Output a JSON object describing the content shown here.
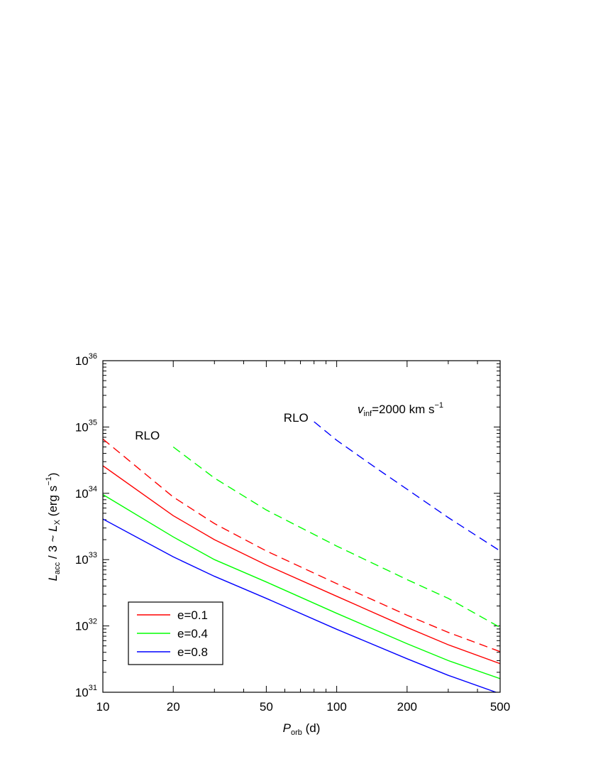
{
  "chart_data": {
    "type": "line",
    "xlabel": {
      "main": "P",
      "sub": "orb",
      "unit": " (d)"
    },
    "ylabel": {
      "L1": "L",
      "L1sub": "acc",
      "mid": " / 3 ~ ",
      "L2": "L",
      "L2sub": "X",
      "unit": " (erg s",
      "sup": "−1",
      "close": ")"
    },
    "xscale": "log",
    "yscale": "log",
    "xlim": [
      10,
      500
    ],
    "ylim": [
      1e+31,
      1e+36
    ],
    "xticks": [
      {
        "value": 10,
        "label": "10"
      },
      {
        "value": 20,
        "label": "20"
      },
      {
        "value": 50,
        "label": "50"
      },
      {
        "value": 100,
        "label": "100"
      },
      {
        "value": 200,
        "label": "200"
      },
      {
        "value": 500,
        "label": "500"
      }
    ],
    "yticks": [
      {
        "value": 1e+31,
        "base": "10",
        "exp": "31"
      },
      {
        "value": 1e+32,
        "base": "10",
        "exp": "32"
      },
      {
        "value": 1e+33,
        "base": "10",
        "exp": "33"
      },
      {
        "value": 1e+34,
        "base": "10",
        "exp": "34"
      },
      {
        "value": 1e+35,
        "base": "10",
        "exp": "35"
      },
      {
        "value": 1e+36,
        "base": "10",
        "exp": "36"
      }
    ],
    "annotation": {
      "v": "v",
      "vsub": "inf",
      "rest": "=2000 km s",
      "sup": "−1"
    },
    "rlo_labels": [
      {
        "text": "RLO",
        "x": 15.5,
        "y": 6.5e+34
      },
      {
        "text": "RLO",
        "x": 67,
        "y": 1.2e+35
      }
    ],
    "legend": {
      "position": "bottom-left"
    },
    "series": [
      {
        "name": "e=0.1",
        "color": "#ff0000",
        "style": "solid",
        "x": [
          10,
          20,
          30,
          50,
          100,
          200,
          300,
          500
        ],
        "y": [
          2.6e+34,
          4.6e+33,
          2e+33,
          8.3e+32,
          2.8e+32,
          9.5e+31,
          5.2e+31,
          2.7e+31
        ]
      },
      {
        "name": "e=0.4",
        "color": "#00ff00",
        "style": "solid",
        "x": [
          10,
          20,
          30,
          50,
          100,
          200,
          300,
          500
        ],
        "y": [
          9.6e+33,
          2.2e+33,
          1e+33,
          4.6e+32,
          1.55e+32,
          5.4e+31,
          3e+31,
          1.6e+31
        ]
      },
      {
        "name": "e=0.8",
        "color": "#0000ff",
        "style": "solid",
        "x": [
          10,
          20,
          30,
          50,
          100,
          200,
          300,
          500
        ],
        "y": [
          4.1e+33,
          1.1e+33,
          5.6e+32,
          2.6e+32,
          8.9e+31,
          3.2e+31,
          1.8e+31,
          9.5e+30
        ]
      },
      {
        "color": "#ff0000",
        "style": "dashed",
        "x": [
          10,
          20,
          30,
          50,
          100,
          200,
          300,
          500
        ],
        "y": [
          6.6e+34,
          8.8e+33,
          3.5e+33,
          1.35e+33,
          4.35e+32,
          1.45e+32,
          8e+31,
          4.1e+31
        ]
      },
      {
        "color": "#00ff00",
        "style": "dashed",
        "x": [
          20,
          30,
          50,
          100,
          200,
          300,
          500
        ],
        "y": [
          5e+34,
          1.7e+34,
          5.6e+33,
          1.6e+33,
          5e+32,
          2.6e+32,
          9.5e+31
        ]
      },
      {
        "color": "#0000ff",
        "style": "dashed",
        "x": [
          80,
          100,
          150,
          200,
          300,
          500
        ],
        "y": [
          1.2e+35,
          6.3e+34,
          2.3e+34,
          1.15e+34,
          4.3e+33,
          1.35e+33
        ]
      }
    ]
  }
}
